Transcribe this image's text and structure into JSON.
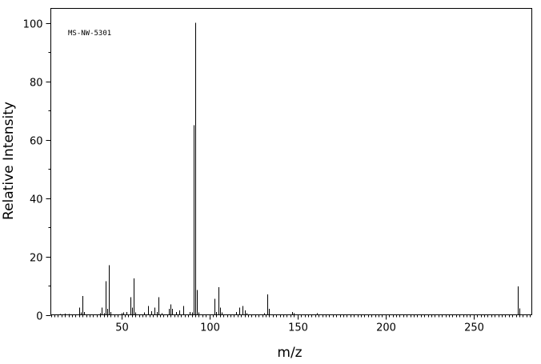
{
  "chart_data": {
    "type": "bar",
    "subtype": "mass-spectrum-stick",
    "title": "",
    "annotation": "MS-NW-5301",
    "xlabel": "m/z",
    "ylabel": "Relative Intensity",
    "xlim": [
      10,
      283
    ],
    "ylim": [
      0,
      105
    ],
    "x_major_ticks": [
      50,
      100,
      150,
      200,
      250
    ],
    "x_minor_step": 2,
    "y_major_ticks": [
      0,
      20,
      40,
      60,
      80,
      100
    ],
    "y_minor_step": 10,
    "grid": false,
    "legend": "none",
    "peaks": [
      {
        "mz": 15,
        "intensity": 0.3
      },
      {
        "mz": 18,
        "intensity": 0.4
      },
      {
        "mz": 20,
        "intensity": 0.3
      },
      {
        "mz": 26,
        "intensity": 2.5
      },
      {
        "mz": 27,
        "intensity": 0.8
      },
      {
        "mz": 28,
        "intensity": 6.5
      },
      {
        "mz": 29,
        "intensity": 1.0
      },
      {
        "mz": 38,
        "intensity": 0.5
      },
      {
        "mz": 39,
        "intensity": 2.5
      },
      {
        "mz": 40,
        "intensity": 0.6
      },
      {
        "mz": 41,
        "intensity": 11.5
      },
      {
        "mz": 42,
        "intensity": 2.0
      },
      {
        "mz": 43,
        "intensity": 17.0
      },
      {
        "mz": 44,
        "intensity": 1.0
      },
      {
        "mz": 50,
        "intensity": 0.5
      },
      {
        "mz": 51,
        "intensity": 0.8
      },
      {
        "mz": 53,
        "intensity": 1.0
      },
      {
        "mz": 55,
        "intensity": 6.0
      },
      {
        "mz": 56,
        "intensity": 2.5
      },
      {
        "mz": 57,
        "intensity": 12.5
      },
      {
        "mz": 58,
        "intensity": 0.8
      },
      {
        "mz": 63,
        "intensity": 0.8
      },
      {
        "mz": 65,
        "intensity": 3.0
      },
      {
        "mz": 67,
        "intensity": 1.2
      },
      {
        "mz": 69,
        "intensity": 2.5
      },
      {
        "mz": 70,
        "intensity": 1.0
      },
      {
        "mz": 71,
        "intensity": 6.0
      },
      {
        "mz": 73,
        "intensity": 0.5
      },
      {
        "mz": 77,
        "intensity": 2.0
      },
      {
        "mz": 78,
        "intensity": 3.5
      },
      {
        "mz": 79,
        "intensity": 2.0
      },
      {
        "mz": 81,
        "intensity": 1.0
      },
      {
        "mz": 83,
        "intensity": 1.5
      },
      {
        "mz": 85,
        "intensity": 3.0
      },
      {
        "mz": 89,
        "intensity": 1.0
      },
      {
        "mz": 90,
        "intensity": 0.8
      },
      {
        "mz": 91,
        "intensity": 65.0
      },
      {
        "mz": 92,
        "intensity": 100.0
      },
      {
        "mz": 93,
        "intensity": 8.5
      },
      {
        "mz": 94,
        "intensity": 0.8
      },
      {
        "mz": 103,
        "intensity": 5.5
      },
      {
        "mz": 104,
        "intensity": 1.0
      },
      {
        "mz": 105,
        "intensity": 9.5
      },
      {
        "mz": 106,
        "intensity": 2.5
      },
      {
        "mz": 107,
        "intensity": 0.8
      },
      {
        "mz": 115,
        "intensity": 1.0
      },
      {
        "mz": 117,
        "intensity": 2.5
      },
      {
        "mz": 119,
        "intensity": 3.0
      },
      {
        "mz": 120,
        "intensity": 1.5
      },
      {
        "mz": 121,
        "intensity": 0.5
      },
      {
        "mz": 131,
        "intensity": 0.6
      },
      {
        "mz": 133,
        "intensity": 7.0
      },
      {
        "mz": 134,
        "intensity": 2.0
      },
      {
        "mz": 147,
        "intensity": 1.0
      },
      {
        "mz": 148,
        "intensity": 0.5
      },
      {
        "mz": 161,
        "intensity": 0.5
      },
      {
        "mz": 275,
        "intensity": 9.8
      },
      {
        "mz": 276,
        "intensity": 2.2
      }
    ]
  }
}
